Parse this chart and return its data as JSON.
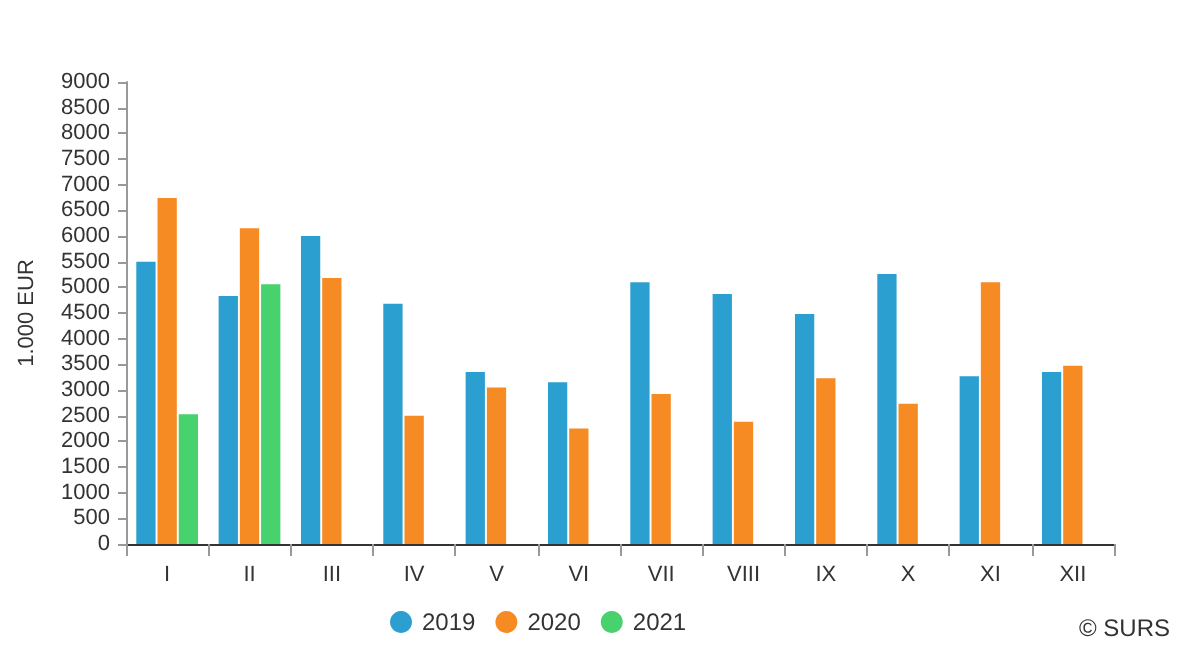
{
  "chart_data": {
    "type": "bar",
    "ylabel": "1.000 EUR",
    "categories": [
      "I",
      "II",
      "III",
      "IV",
      "V",
      "VI",
      "VII",
      "VIII",
      "IX",
      "X",
      "XI",
      "XII"
    ],
    "series": [
      {
        "name": "2019",
        "color": "#2ba0d0",
        "values": [
          5500,
          4830,
          6000,
          4680,
          3350,
          3150,
          5100,
          4870,
          4480,
          5260,
          3270,
          3350
        ]
      },
      {
        "name": "2020",
        "color": "#f68b24",
        "values": [
          6740,
          6150,
          5180,
          2500,
          3050,
          2250,
          2920,
          2380,
          3230,
          2730,
          5100,
          3470
        ]
      },
      {
        "name": "2021",
        "color": "#47d26e",
        "values": [
          2530,
          5060,
          null,
          null,
          null,
          null,
          null,
          null,
          null,
          null,
          null,
          null
        ]
      }
    ],
    "ylim": [
      0,
      9000
    ],
    "yticks": [
      0,
      500,
      1000,
      1500,
      2000,
      2500,
      3000,
      3500,
      4000,
      4500,
      5000,
      5500,
      6000,
      6500,
      7000,
      7500,
      8000,
      8500,
      9000
    ],
    "grid": false,
    "legend": "bottom",
    "annotations": [
      "© SURS"
    ]
  }
}
